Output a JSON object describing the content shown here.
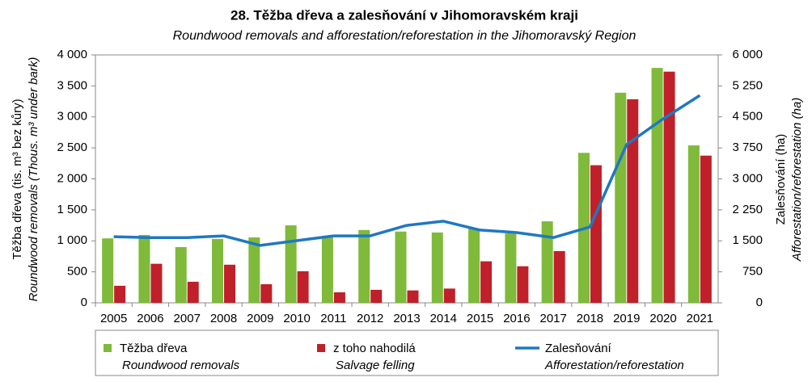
{
  "chart_data": {
    "type": "bar-line",
    "title": "28. Těžba dřeva a zalesňování v Jihomoravském kraji",
    "subtitle": "Roundwood removals and afforestation/reforestation in the Jihomoravský Region",
    "y_label": "Těžba dřeva (tis. m³ bez kůry)",
    "y_label_en": "Roundwood removals (Thous. m³ under bark)",
    "y2_label": "Zalesňování  (ha)",
    "y2_label_en": "Afforestation/reforestation (ha)",
    "categories": [
      "2005",
      "2006",
      "2007",
      "2008",
      "2009",
      "2010",
      "2011",
      "2012",
      "2013",
      "2014",
      "2015",
      "2016",
      "2017",
      "2018",
      "2019",
      "2020",
      "2021"
    ],
    "ylim": [
      0,
      4000
    ],
    "yticks": [
      0,
      500,
      {
        "value": 1000,
        "label": "1 000"
      },
      {
        "value": 1500,
        "label": "1 500"
      },
      {
        "value": 2000,
        "label": "2 000"
      },
      {
        "value": 2500,
        "label": "2 500"
      },
      {
        "value": 3000,
        "label": "3 000"
      },
      {
        "value": 3500,
        "label": "3 500"
      },
      {
        "value": 4000,
        "label": "4 000"
      }
    ],
    "y2lim": [
      0,
      6000
    ],
    "y2ticks": [
      0,
      750,
      {
        "value": 1500,
        "label": "1 500"
      },
      {
        "value": 2250,
        "label": "2 250"
      },
      {
        "value": 3000,
        "label": "3 000"
      },
      {
        "value": 3750,
        "label": "3 750"
      },
      {
        "value": 4500,
        "label": "4 500"
      },
      {
        "value": 5250,
        "label": "5 250"
      },
      {
        "value": 6000,
        "label": "6 000"
      }
    ],
    "series": [
      {
        "name": "Těžba dřeva",
        "name_en": "Roundwood removals",
        "type": "bar",
        "color": "#7fba3a",
        "values": [
          1040,
          1095,
          900,
          1030,
          1055,
          1250,
          1070,
          1175,
          1150,
          1135,
          1200,
          1120,
          1315,
          2420,
          3390,
          3790,
          2540
        ]
      },
      {
        "name": "z toho nahodilá",
        "name_en": "Salvage felling",
        "type": "bar",
        "color": "#c0202a",
        "values": [
          275,
          630,
          340,
          615,
          300,
          510,
          170,
          210,
          200,
          230,
          670,
          590,
          835,
          2220,
          3285,
          3730,
          2375
        ]
      },
      {
        "name": "Zalesňování",
        "name_en": "Afforestation/reforestation",
        "type": "line",
        "axis": "y2",
        "color": "#1f78c1",
        "values": [
          1600,
          1580,
          1580,
          1620,
          1390,
          1505,
          1620,
          1620,
          1875,
          1975,
          1760,
          1700,
          1580,
          1835,
          3830,
          4455,
          5020
        ]
      }
    ]
  }
}
